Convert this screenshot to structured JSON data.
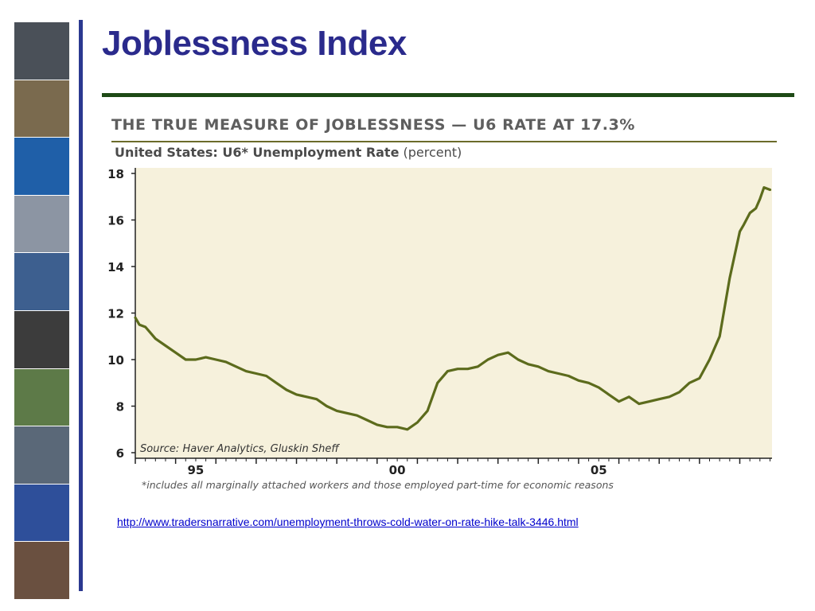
{
  "slide": {
    "title": "Joblessness Index",
    "link": "http://www.tradersnarrative.com/unemployment-throws-cold-water-on-rate-hike-talk-3446.html"
  },
  "photo_strip": [
    {
      "name": "riot-police-photo",
      "color": "#4a5058"
    },
    {
      "name": "soldier-photo",
      "color": "#7a6a4e"
    },
    {
      "name": "un-emblem-photo",
      "color": "#1f5fa8"
    },
    {
      "name": "towers-smoke-photo",
      "color": "#8c95a3"
    },
    {
      "name": "unhcr-truck-photo",
      "color": "#3d5f8f"
    },
    {
      "name": "mlk-portrait-photo",
      "color": "#3c3c3c"
    },
    {
      "name": "cemetery-photo",
      "color": "#5d7a48"
    },
    {
      "name": "fighter-jet-photo",
      "color": "#5a6878"
    },
    {
      "name": "protest-signs-photo",
      "color": "#2e4f9a"
    },
    {
      "name": "handcuffs-photo",
      "color": "#6a5040"
    }
  ],
  "chart_data": {
    "type": "line",
    "title": "THE TRUE MEASURE OF JOBLESSNESS — U6 RATE AT 17.3%",
    "subtitle_bold": "United States: U6* Unemployment Rate",
    "subtitle_unit": "(percent)",
    "source": "Source: Haver Analytics, Gluskin Sheff",
    "footnote": "*includes all marginally attached workers and those employed part-time for economic reasons",
    "x_tick_labels": [
      {
        "label": "95",
        "x": 1995.0
      },
      {
        "label": "00",
        "x": 2000.0
      },
      {
        "label": "05",
        "x": 2005.0
      }
    ],
    "xlim": [
      1994.0,
      2009.8
    ],
    "y_ticks": [
      6,
      8,
      10,
      12,
      14,
      16,
      18
    ],
    "ylim": [
      6,
      18
    ],
    "grid": false,
    "background_color": "#f6f1dc",
    "line_color": "#5c6b1c",
    "series": [
      {
        "x": [
          1994.0,
          1994.1,
          1994.25,
          1994.4,
          1994.5,
          1994.75,
          1995.0,
          1995.25,
          1995.5,
          1995.75,
          1996.0,
          1996.25,
          1996.5,
          1996.75,
          1997.0,
          1997.25,
          1997.5,
          1997.75,
          1998.0,
          1998.25,
          1998.5,
          1998.75,
          1999.0,
          1999.25,
          1999.5,
          1999.75,
          2000.0,
          2000.25,
          2000.5,
          2000.75,
          2001.0,
          2001.25,
          2001.5,
          2001.75,
          2002.0,
          2002.25,
          2002.5,
          2002.75,
          2003.0,
          2003.25,
          2003.5,
          2003.75,
          2004.0,
          2004.25,
          2004.5,
          2004.75,
          2005.0,
          2005.25,
          2005.5,
          2005.75,
          2006.0,
          2006.25,
          2006.5,
          2006.75,
          2007.0,
          2007.25,
          2007.5,
          2007.75,
          2008.0,
          2008.25,
          2008.5,
          2008.75,
          2009.0,
          2009.1,
          2009.25,
          2009.4,
          2009.5,
          2009.6,
          2009.75
        ],
        "values": [
          11.8,
          11.5,
          11.4,
          11.1,
          10.9,
          10.6,
          10.3,
          10.0,
          10.0,
          10.1,
          10.0,
          9.9,
          9.7,
          9.5,
          9.4,
          9.3,
          9.0,
          8.7,
          8.5,
          8.4,
          8.3,
          8.0,
          7.8,
          7.7,
          7.6,
          7.4,
          7.2,
          7.1,
          7.1,
          7.0,
          7.3,
          7.8,
          9.0,
          9.5,
          9.6,
          9.6,
          9.7,
          10.0,
          10.2,
          10.3,
          10.0,
          9.8,
          9.7,
          9.5,
          9.4,
          9.3,
          9.1,
          9.0,
          8.8,
          8.5,
          8.2,
          8.4,
          8.1,
          8.2,
          8.3,
          8.4,
          8.6,
          9.0,
          9.2,
          10.0,
          11.0,
          13.5,
          15.5,
          15.8,
          16.3,
          16.5,
          16.9,
          17.4,
          17.3
        ]
      }
    ]
  }
}
